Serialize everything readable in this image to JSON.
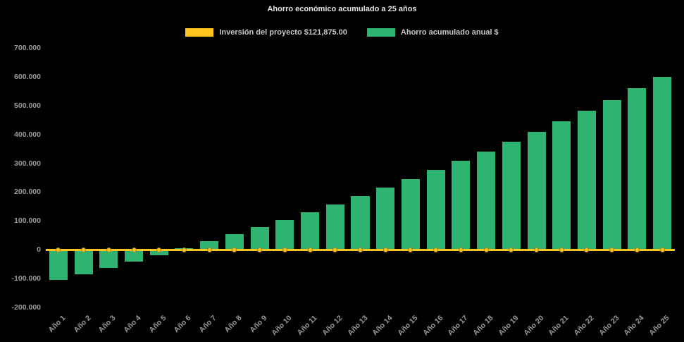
{
  "theme": {
    "background": "#000000",
    "title_color": "#e2e2e2",
    "legend_text_color": "#c9c9c9",
    "label_color": "#9a9a9a"
  },
  "chart_data": {
    "type": "bar",
    "title": "Ahorro económico acumulado a 25 años",
    "categories": [
      "Año 1",
      "Año 2",
      "Año 3",
      "Año 4",
      "Año 5",
      "Año 6",
      "Año 7",
      "Año 8",
      "Año 9",
      "Año 10",
      "Año 11",
      "Año 12",
      "Año 13",
      "Año 14",
      "Año 15",
      "Año 16",
      "Año 17",
      "Año 18",
      "Año 19",
      "Año 20",
      "Año 21",
      "Año 22",
      "Año 23",
      "Año 24",
      "Año 25"
    ],
    "series": [
      {
        "name": "Inversión del proyecto $121,875.00",
        "chart_type": "line",
        "color": "#FFC41E",
        "values": [
          0,
          0,
          0,
          0,
          0,
          0,
          0,
          0,
          0,
          0,
          0,
          0,
          0,
          0,
          0,
          0,
          0,
          0,
          0,
          0,
          0,
          0,
          0,
          0,
          0
        ]
      },
      {
        "name": "Ahorro acumulado anual $",
        "chart_type": "bar",
        "color": "#2EB370",
        "values": [
          -105000,
          -85000,
          -62000,
          -40000,
          -18000,
          5000,
          30000,
          55000,
          78000,
          103000,
          130000,
          158000,
          187000,
          215000,
          245000,
          277000,
          308000,
          340000,
          375000,
          408000,
          445000,
          482000,
          520000,
          560000,
          600000
        ]
      }
    ],
    "ylim": [
      -200000,
      700000
    ],
    "yticks": [
      700000,
      600000,
      500000,
      400000,
      300000,
      200000,
      100000,
      0,
      -100000,
      -200000
    ],
    "grid": false,
    "legend_position": "top",
    "xlabel": "",
    "ylabel": ""
  }
}
